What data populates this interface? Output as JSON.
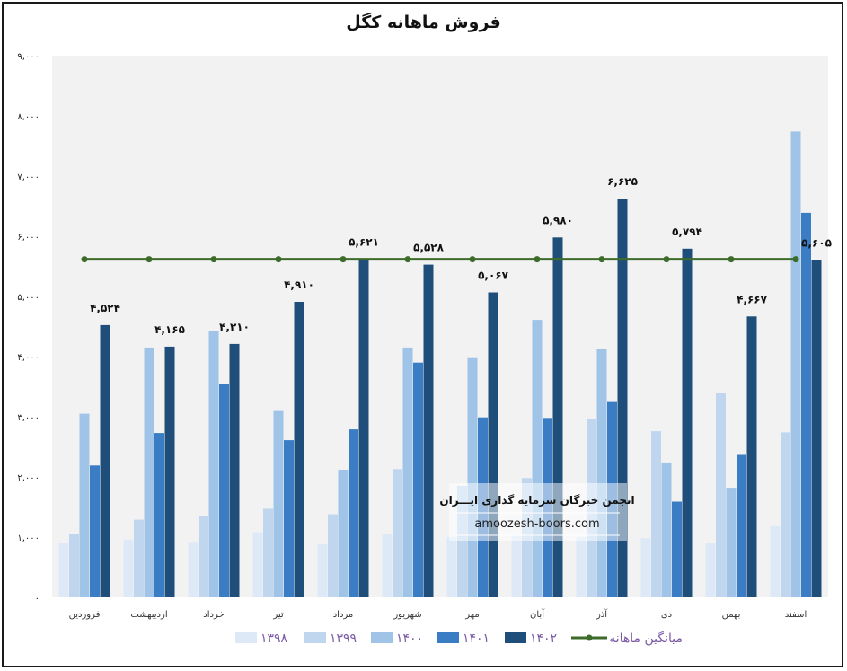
{
  "chart_data": {
    "type": "bar",
    "title": "فروش ماهانه کگل",
    "categories": [
      "فروردین",
      "اردیبهشت",
      "خرداد",
      "تیر",
      "مرداد",
      "شهریور",
      "مهر",
      "آبان",
      "آذر",
      "دی",
      "بهمن",
      "اسفند"
    ],
    "series": [
      {
        "name": "۱۳۹۸",
        "color": "#dde9f6",
        "values": [
          900,
          960,
          920,
          1080,
          880,
          1060,
          1000,
          1020,
          1000,
          980,
          900,
          1180
        ]
      },
      {
        "name": "۱۳۹۹",
        "color": "#bfd6ee",
        "values": [
          1050,
          1290,
          1350,
          1470,
          1380,
          2130,
          1850,
          1980,
          2960,
          2760,
          3400,
          2740
        ]
      },
      {
        "name": "۱۴۰۰",
        "color": "#9fc4e8",
        "values": [
          3050,
          4150,
          4430,
          3110,
          2120,
          4150,
          3990,
          4610,
          4120,
          2240,
          1820,
          7740
        ]
      },
      {
        "name": "۱۴۰۱",
        "color": "#3a7dc4",
        "values": [
          2190,
          2730,
          3540,
          2610,
          2790,
          3900,
          2990,
          2980,
          3260,
          1590,
          2380,
          6390
        ]
      },
      {
        "name": "۱۴۰۲",
        "color": "#1f4e7a",
        "values": [
          4524,
          4165,
          4210,
          4910,
          5621,
          5528,
          5067,
          5980,
          6625,
          5794,
          4667,
          5605
        ]
      }
    ],
    "data_labels": [
      "۴,۵۲۴",
      "۴,۱۶۵",
      "۴,۲۱۰",
      "۴,۹۱۰",
      "۵,۶۲۱",
      "۵,۵۲۸",
      "۵,۰۶۷",
      "۵,۹۸۰",
      "۶,۶۲۵",
      "۵,۷۹۴",
      "۴,۶۶۷",
      "۵,۶۰۵"
    ],
    "average": {
      "name": "میانگین ماهانه",
      "value": 5617,
      "color": "#3d6b2a"
    },
    "yticks": [
      0,
      1000,
      2000,
      3000,
      4000,
      5000,
      6000,
      7000,
      8000,
      9000
    ],
    "ytick_labels": [
      "۰",
      "۱,۰۰۰",
      "۲,۰۰۰",
      "۳,۰۰۰",
      "۴,۰۰۰",
      "۵,۰۰۰",
      "۶,۰۰۰",
      "۷,۰۰۰",
      "۸,۰۰۰",
      "۹,۰۰۰"
    ],
    "ylim": [
      0,
      9000
    ],
    "xlabel": "",
    "ylabel": "",
    "grid": false,
    "legend_position": "bottom"
  },
  "watermark": {
    "title": "انجمن خبرگان سرمایه گذاری ایـــران",
    "url": "amoozesh-boors.com"
  }
}
